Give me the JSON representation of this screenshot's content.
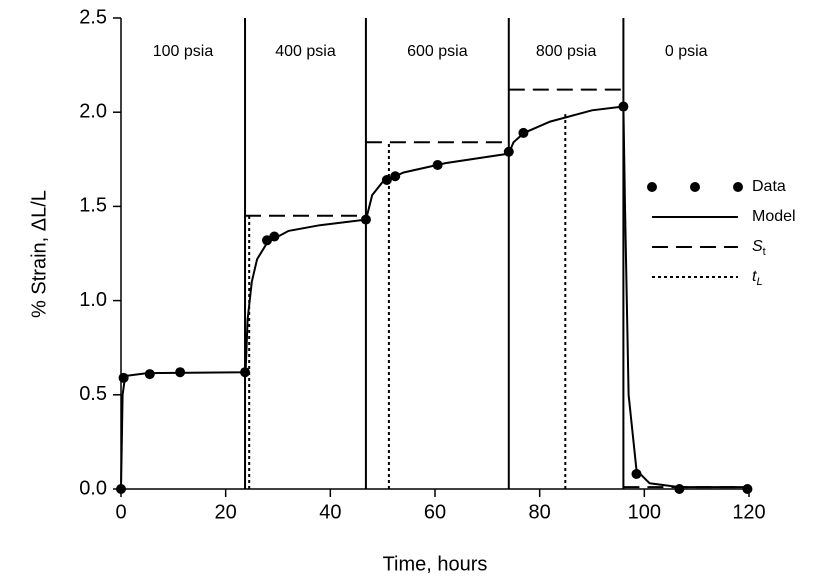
{
  "chart_data": {
    "type": "line",
    "x_label": "Time, hours",
    "y_label": "% Strain, ΔL/L",
    "xlim": [
      0,
      120
    ],
    "xticks": [
      0,
      20,
      40,
      60,
      80,
      100,
      120
    ],
    "ylim": [
      0,
      2.5
    ],
    "yticks": [
      {
        "value": 0,
        "label": "0.0"
      },
      {
        "value": 0.5,
        "label": "0.5"
      },
      {
        "value": 1,
        "label": "1.0"
      },
      {
        "value": 1.5,
        "label": "1.5"
      },
      {
        "value": 2,
        "label": "2.0"
      },
      {
        "value": 2.5,
        "label": "2.5"
      }
    ],
    "phases": [
      {
        "label": "100 psia",
        "start": 0,
        "end": 23.7
      },
      {
        "label": "400 psia",
        "start": 23.7,
        "end": 46.8
      },
      {
        "label": "600 psia",
        "start": 46.8,
        "end": 74.1
      },
      {
        "label": "800 psia",
        "start": 74.1,
        "end": 96
      },
      {
        "label": "0 psia",
        "start": 96,
        "end": 120
      }
    ],
    "legend": "right",
    "series": [
      {
        "name": "Data",
        "style": "markers",
        "color": "#000000",
        "x": [
          0,
          0.5,
          5.5,
          11.3,
          23.7,
          27.9,
          29.3,
          46.8,
          50.8,
          52.4,
          60.5,
          74.1,
          76.9,
          96,
          98.5,
          106.7,
          119.7
        ],
        "values": [
          0,
          0.59,
          0.61,
          0.62,
          0.62,
          1.32,
          1.34,
          1.43,
          1.64,
          1.66,
          1.72,
          1.79,
          1.89,
          2.03,
          0.08,
          0,
          0
        ]
      },
      {
        "name": "Model",
        "style": "solid",
        "color": "#000000",
        "x": [
          0,
          0.3,
          0.8,
          5,
          23.7,
          23.8,
          24.2,
          25,
          26,
          28,
          32,
          38,
          46.8,
          47,
          48,
          50,
          54,
          62,
          74.1,
          75,
          77,
          82,
          90,
          96,
          96.3,
          97,
          98.5,
          101,
          106.7,
          120
        ],
        "values": [
          0,
          0.5,
          0.6,
          0.615,
          0.62,
          0.62,
          0.9,
          1.1,
          1.22,
          1.31,
          1.37,
          1.4,
          1.43,
          1.45,
          1.56,
          1.63,
          1.68,
          1.73,
          1.78,
          1.84,
          1.89,
          1.95,
          2.01,
          2.03,
          1.5,
          0.5,
          0.1,
          0.03,
          0.01,
          0.01
        ]
      },
      {
        "name": "St",
        "style": "dashed",
        "color": "#000000",
        "x": [
          23.7,
          46.8,
          null,
          46.8,
          74.1,
          null,
          74.1,
          96,
          null,
          96,
          120
        ],
        "values": [
          1.45,
          1.45,
          null,
          1.84,
          1.84,
          null,
          2.12,
          2.12,
          null,
          0.01,
          0.01
        ]
      },
      {
        "name": "tL",
        "style": "dotted",
        "color": "#000000",
        "x": [
          24.5,
          24.5,
          null,
          51.2,
          51.2,
          null,
          84.9,
          84.9
        ],
        "values": [
          0,
          1.45,
          null,
          0,
          1.84,
          null,
          0,
          1.99
        ]
      }
    ]
  }
}
